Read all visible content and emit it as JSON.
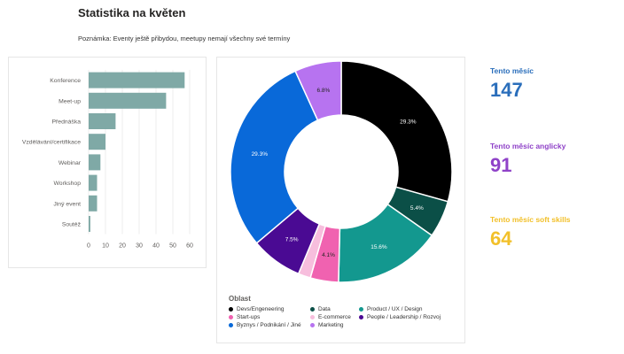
{
  "page": {
    "title": "Statistika na květen",
    "note": "Poznámka: Eventy ještě přibydou, meetupy nemají všechny své termíny"
  },
  "kpis": [
    {
      "label": "Tento měsíc",
      "value": "147",
      "color": "#2a6ebb"
    },
    {
      "label": "Tento měsíc anglicky",
      "value": "91",
      "color": "#8f42c8"
    },
    {
      "label": "Tento měsíc soft skills",
      "value": "64",
      "color": "#f2c02a"
    }
  ],
  "chart_data": [
    {
      "type": "bar",
      "orientation": "horizontal",
      "categories": [
        "Konference",
        "Meet-up",
        "Přednáška",
        "Vzdělávání/certifikace",
        "Webinar",
        "Workshop",
        "Jiný event",
        "Soutěž"
      ],
      "values": [
        57,
        46,
        16,
        10,
        7,
        5,
        5,
        1
      ],
      "xlim": [
        0,
        60
      ],
      "xticks": [
        0,
        10,
        20,
        30,
        40,
        50,
        60
      ],
      "grid": true,
      "color": "#7fa9a6"
    },
    {
      "type": "pie",
      "variant": "donut",
      "legend_title": "Oblast",
      "legend_position": "bottom-left",
      "slices": [
        {
          "name": "Devs/Engeneering",
          "value": 29.3,
          "label": "29.3%",
          "color": "#000000"
        },
        {
          "name": "Data",
          "value": 5.4,
          "label": "5.4%",
          "color": "#0b4f47"
        },
        {
          "name": "Product / UX / Design",
          "value": 15.6,
          "label": "15.6%",
          "color": "#13988f"
        },
        {
          "name": "Start-ups",
          "value": 4.1,
          "label": "4.1%",
          "color": "#f062b0"
        },
        {
          "name": "E-commerce",
          "value": 1.8,
          "label": "",
          "color": "#f7bedd"
        },
        {
          "name": "People / Leadership / Rozvoj",
          "value": 7.5,
          "label": "7.5%",
          "color": "#4a0a93"
        },
        {
          "name": "Byznys / Podnikání / Jiné",
          "value": 29.3,
          "label": "29.3%",
          "color": "#0969d9"
        },
        {
          "name": "Marketing",
          "value": 6.8,
          "label": "6.8%",
          "color": "#b773f0"
        }
      ]
    }
  ]
}
